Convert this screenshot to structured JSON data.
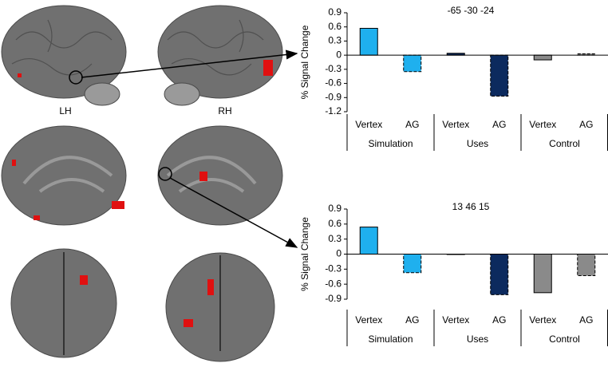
{
  "brain_panel": {
    "labels": [
      "LH",
      "RH"
    ]
  },
  "chart_data": [
    {
      "type": "bar",
      "title": "-65 -30 -24",
      "y_label": "% Signal Change",
      "categories": [
        "Vertex",
        "AG",
        "Vertex",
        "AG",
        "Vertex",
        "AG"
      ],
      "groups": [
        "Simulation",
        "Uses",
        "Control"
      ],
      "values": [
        0.57,
        -0.35,
        0.04,
        -0.87,
        -0.1,
        0.03
      ],
      "colors": [
        "#1fb0ee",
        "#1fb0ee",
        "#0c2a5e",
        "#0c2a5e",
        "#8a8a8a",
        "#8a8a8a"
      ],
      "dashed": [
        false,
        true,
        false,
        true,
        false,
        true
      ],
      "ylim": [
        -1.2,
        0.9
      ],
      "yticks": [
        0.9,
        0.6,
        0.3,
        0,
        -0.3,
        -0.6,
        -0.9,
        -1.2
      ]
    },
    {
      "type": "bar",
      "title": "13 46 15",
      "y_label": "% Signal Change",
      "categories": [
        "Vertex",
        "AG",
        "Vertex",
        "AG",
        "Vertex",
        "AG"
      ],
      "groups": [
        "Simulation",
        "Uses",
        "Control"
      ],
      "values": [
        0.54,
        -0.37,
        0.0,
        -0.81,
        -0.77,
        -0.43
      ],
      "colors": [
        "#1fb0ee",
        "#1fb0ee",
        "#0c2a5e",
        "#0c2a5e",
        "#8a8a8a",
        "#8a8a8a"
      ],
      "dashed": [
        false,
        true,
        false,
        true,
        false,
        true
      ],
      "ylim": [
        -0.9,
        0.9
      ],
      "yticks": [
        0.9,
        0.6,
        0.3,
        0,
        -0.3,
        -0.6,
        -0.9
      ]
    }
  ]
}
